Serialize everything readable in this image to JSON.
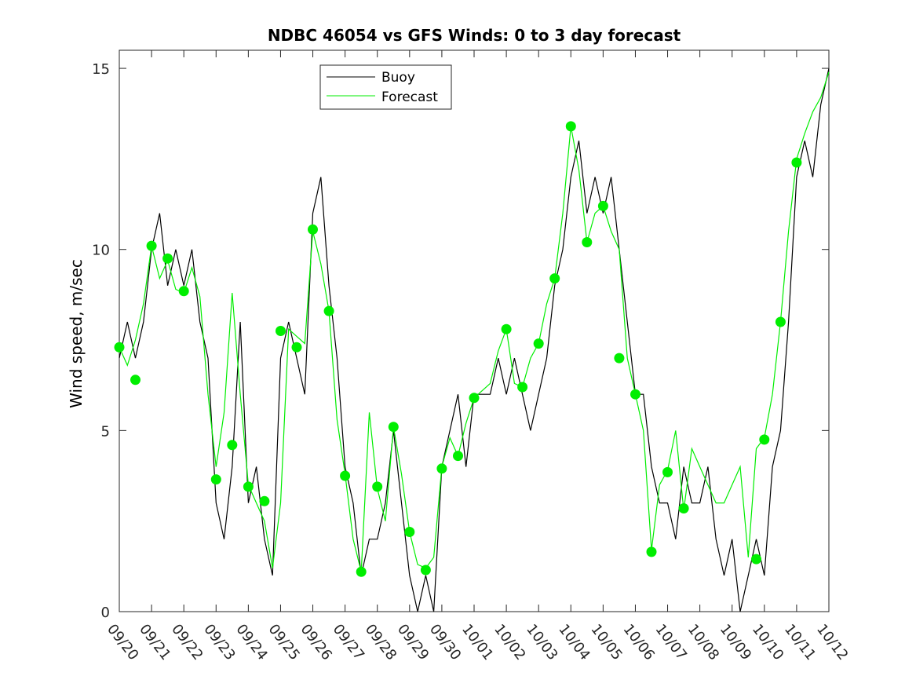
{
  "chart_data": {
    "type": "line",
    "title": "NDBC 46054 vs GFS Winds: 0 to 3 day forecast",
    "xlabel": "",
    "ylabel": "Wind speed, m/sec",
    "ylim": [
      0,
      15.5
    ],
    "yticks": [
      0,
      5,
      10,
      15
    ],
    "xlim": [
      "09/20",
      "10/12"
    ],
    "xtick_labels": [
      "09/20",
      "09/21",
      "09/22",
      "09/23",
      "09/24",
      "09/25",
      "09/26",
      "09/27",
      "09/28",
      "09/29",
      "09/30",
      "10/01",
      "10/02",
      "10/03",
      "10/04",
      "10/05",
      "10/06",
      "10/07",
      "10/08",
      "10/09",
      "10/10",
      "10/11",
      "10/12"
    ],
    "grid": false,
    "legend": {
      "placement": "top-center",
      "entries": [
        "Buoy",
        "Forecast"
      ]
    },
    "colors": {
      "buoy": "#000000",
      "forecast": "#00ee00",
      "marker": "#00ee00"
    },
    "series": [
      {
        "name": "Buoy",
        "x": [
          "09/20",
          "09/20 06:00",
          "09/20 12:00",
          "09/20 18:00",
          "09/21",
          "09/21 06:00",
          "09/21 12:00",
          "09/21 18:00",
          "09/22",
          "09/22 06:00",
          "09/22 12:00",
          "09/22 18:00",
          "09/23",
          "09/23 06:00",
          "09/23 12:00",
          "09/23 18:00",
          "09/24",
          "09/24 06:00",
          "09/24 12:00",
          "09/24 18:00",
          "09/25",
          "09/25 06:00",
          "09/25 12:00",
          "09/25 18:00",
          "09/26",
          "09/26 06:00",
          "09/26 12:00",
          "09/26 18:00",
          "09/27",
          "09/27 06:00",
          "09/27 12:00",
          "09/27 18:00",
          "09/28",
          "09/28 06:00",
          "09/28 12:00",
          "09/28 18:00",
          "09/29",
          "09/29 06:00",
          "09/29 12:00",
          "09/29 18:00",
          "09/30",
          "09/30 06:00",
          "09/30 12:00",
          "09/30 18:00",
          "10/01",
          "10/01 06:00",
          "10/01 12:00",
          "10/01 18:00",
          "10/02",
          "10/02 06:00",
          "10/02 12:00",
          "10/02 18:00",
          "10/03",
          "10/03 06:00",
          "10/03 12:00",
          "10/03 18:00",
          "10/04",
          "10/04 06:00",
          "10/04 12:00",
          "10/04 18:00",
          "10/05",
          "10/05 06:00",
          "10/05 12:00",
          "10/05 18:00",
          "10/06",
          "10/06 06:00",
          "10/06 12:00",
          "10/06 18:00",
          "10/07",
          "10/07 06:00",
          "10/07 12:00",
          "10/07 18:00",
          "10/08",
          "10/08 06:00",
          "10/08 12:00",
          "10/08 18:00",
          "10/09",
          "10/09 06:00",
          "10/09 12:00",
          "10/09 18:00",
          "10/10",
          "10/10 06:00",
          "10/10 12:00",
          "10/10 18:00",
          "10/11",
          "10/11 06:00",
          "10/11 12:00",
          "10/11 18:00",
          "10/12"
        ],
        "values": [
          7,
          8,
          7,
          8,
          10,
          11,
          9,
          10,
          9,
          10,
          8,
          7,
          3,
          2,
          4,
          8,
          3,
          4,
          2,
          1,
          7,
          8,
          7,
          6,
          11,
          12,
          9,
          7,
          4,
          3,
          1,
          2,
          2,
          3,
          5,
          3,
          1,
          0,
          1,
          0,
          4,
          5,
          6,
          4,
          6,
          6,
          6,
          7,
          6,
          7,
          6,
          5,
          6,
          7,
          9,
          10,
          12,
          13,
          11,
          12,
          11,
          12,
          10,
          8,
          6,
          6,
          4,
          3,
          3,
          2,
          4,
          3,
          3,
          4,
          2,
          1,
          2,
          0,
          1,
          2,
          1,
          4,
          5,
          8,
          12,
          13,
          12,
          14,
          15
        ]
      },
      {
        "name": "Forecast",
        "x": [
          "09/20",
          "09/20 06:00",
          "09/20 12:00",
          "09/20 18:00",
          "09/21",
          "09/21 06:00",
          "09/21 12:00",
          "09/21 18:00",
          "09/22",
          "09/22 06:00",
          "09/22 12:00",
          "09/22 18:00",
          "09/23",
          "09/23 06:00",
          "09/23 12:00",
          "09/23 18:00",
          "09/24",
          "09/24 06:00",
          "09/24 12:00",
          "09/24 18:00",
          "09/25",
          "09/25 06:00",
          "09/25 12:00",
          "09/25 18:00",
          "09/26",
          "09/26 06:00",
          "09/26 12:00",
          "09/26 18:00",
          "09/27",
          "09/27 06:00",
          "09/27 12:00",
          "09/27 18:00",
          "09/28",
          "09/28 06:00",
          "09/28 12:00",
          "09/28 18:00",
          "09/29",
          "09/29 06:00",
          "09/29 12:00",
          "09/29 18:00",
          "09/30",
          "09/30 06:00",
          "09/30 12:00",
          "09/30 18:00",
          "10/01",
          "10/01 06:00",
          "10/01 12:00",
          "10/01 18:00",
          "10/02",
          "10/02 06:00",
          "10/02 12:00",
          "10/02 18:00",
          "10/03",
          "10/03 06:00",
          "10/03 12:00",
          "10/03 18:00",
          "10/04",
          "10/04 06:00",
          "10/04 12:00",
          "10/04 18:00",
          "10/05",
          "10/05 06:00",
          "10/05 12:00",
          "10/05 18:00",
          "10/06",
          "10/06 06:00",
          "10/06 12:00",
          "10/06 18:00",
          "10/07",
          "10/07 06:00",
          "10/07 12:00",
          "10/07 18:00",
          "10/08",
          "10/08 06:00",
          "10/08 12:00",
          "10/08 18:00",
          "10/09",
          "10/09 06:00",
          "10/09 12:00",
          "10/09 18:00",
          "10/10",
          "10/10 06:00",
          "10/10 12:00",
          "10/10 18:00",
          "10/11",
          "10/11 06:00",
          "10/11 12:00",
          "10/11 18:00",
          "10/12"
        ],
        "values": [
          7.3,
          6.8,
          7.5,
          8.5,
          10.1,
          9.2,
          9.7,
          8.9,
          8.8,
          9.5,
          8.7,
          6.0,
          4.0,
          5.5,
          8.8,
          6.0,
          3.5,
          3.0,
          2.5,
          1.2,
          3.0,
          7.8,
          7.6,
          7.4,
          10.5,
          9.6,
          8.3,
          5.3,
          3.8,
          2.0,
          1.1,
          5.5,
          3.4,
          2.5,
          5.1,
          3.8,
          2.2,
          1.3,
          1.2,
          1.5,
          4.0,
          4.8,
          4.3,
          5.2,
          5.9,
          6.1,
          6.3,
          7.2,
          7.8,
          6.3,
          6.2,
          7.0,
          7.4,
          8.5,
          9.2,
          11.0,
          13.4,
          12.2,
          10.2,
          11.0,
          11.2,
          10.5,
          10.0,
          7.0,
          6.0,
          5.0,
          1.7,
          3.5,
          3.9,
          5.0,
          2.8,
          4.5,
          4.0,
          3.5,
          3.0,
          3.0,
          3.5,
          4.0,
          1.5,
          4.5,
          4.8,
          6.0,
          8.0,
          10.5,
          12.5,
          13.2,
          13.8,
          14.2,
          14.9
        ]
      }
    ],
    "markers": {
      "x": [
        "09/20",
        "09/20 12:00",
        "09/21",
        "09/21 12:00",
        "09/22",
        "09/23",
        "09/23 12:00",
        "09/24",
        "09/24 12:00",
        "09/25",
        "09/25 12:00",
        "09/26",
        "09/26 12:00",
        "09/27",
        "09/27 12:00",
        "09/28",
        "09/28 12:00",
        "09/29",
        "09/29 12:00",
        "09/30",
        "09/30 12:00",
        "10/01",
        "10/02",
        "10/02 12:00",
        "10/03",
        "10/03 12:00",
        "10/04",
        "10/04 12:00",
        "10/05",
        "10/05 12:00",
        "10/06",
        "10/06 12:00",
        "10/07",
        "10/07 12:00",
        "10/09 18:00",
        "10/10",
        "10/10 12:00",
        "10/11"
      ],
      "values": [
        7.3,
        6.4,
        10.1,
        9.75,
        8.85,
        3.65,
        4.6,
        3.45,
        3.05,
        7.75,
        7.3,
        10.55,
        8.3,
        3.75,
        1.1,
        3.45,
        5.1,
        2.2,
        1.15,
        3.95,
        4.3,
        5.9,
        7.8,
        6.2,
        7.4,
        9.2,
        13.4,
        10.2,
        11.2,
        7.0,
        6.0,
        1.65,
        3.85,
        2.85,
        1.45,
        4.75,
        8.0,
        12.4
      ]
    }
  }
}
